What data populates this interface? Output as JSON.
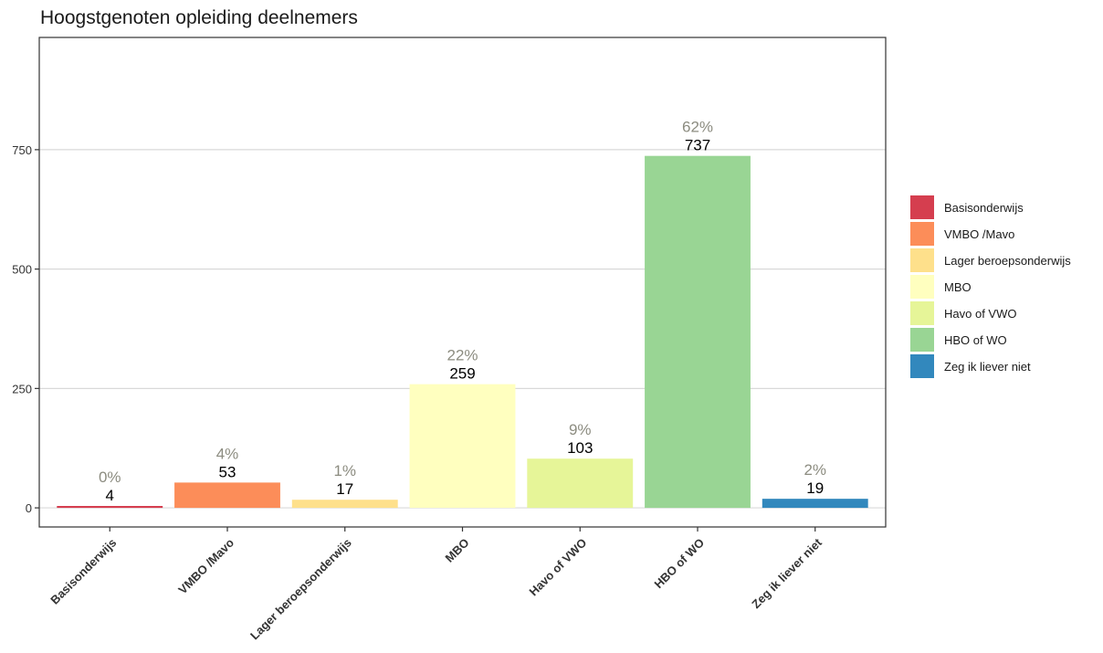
{
  "chart_data": {
    "type": "bar",
    "title": "Hoogstgenoten opleiding deelnemers",
    "xlabel": "",
    "ylabel": "",
    "ylim": [
      -40,
      985
    ],
    "yticks": [
      0,
      250,
      500,
      750
    ],
    "grid": true,
    "legend_position": "right",
    "categories": [
      "Basisonderwijs",
      "VMBO /Mavo",
      "Lager beroepsonderwijs",
      "MBO",
      "Havo of VWO",
      "HBO of WO",
      "Zeg ik liever niet"
    ],
    "values": [
      4,
      53,
      17,
      259,
      103,
      737,
      19
    ],
    "percent_labels": [
      "0%",
      "4%",
      "1%",
      "22%",
      "9%",
      "62%",
      "2%"
    ],
    "colors": [
      "#d53e4f",
      "#fc8d59",
      "#fee08b",
      "#ffffbf",
      "#e6f598",
      "#99d594",
      "#3288bd"
    ]
  }
}
